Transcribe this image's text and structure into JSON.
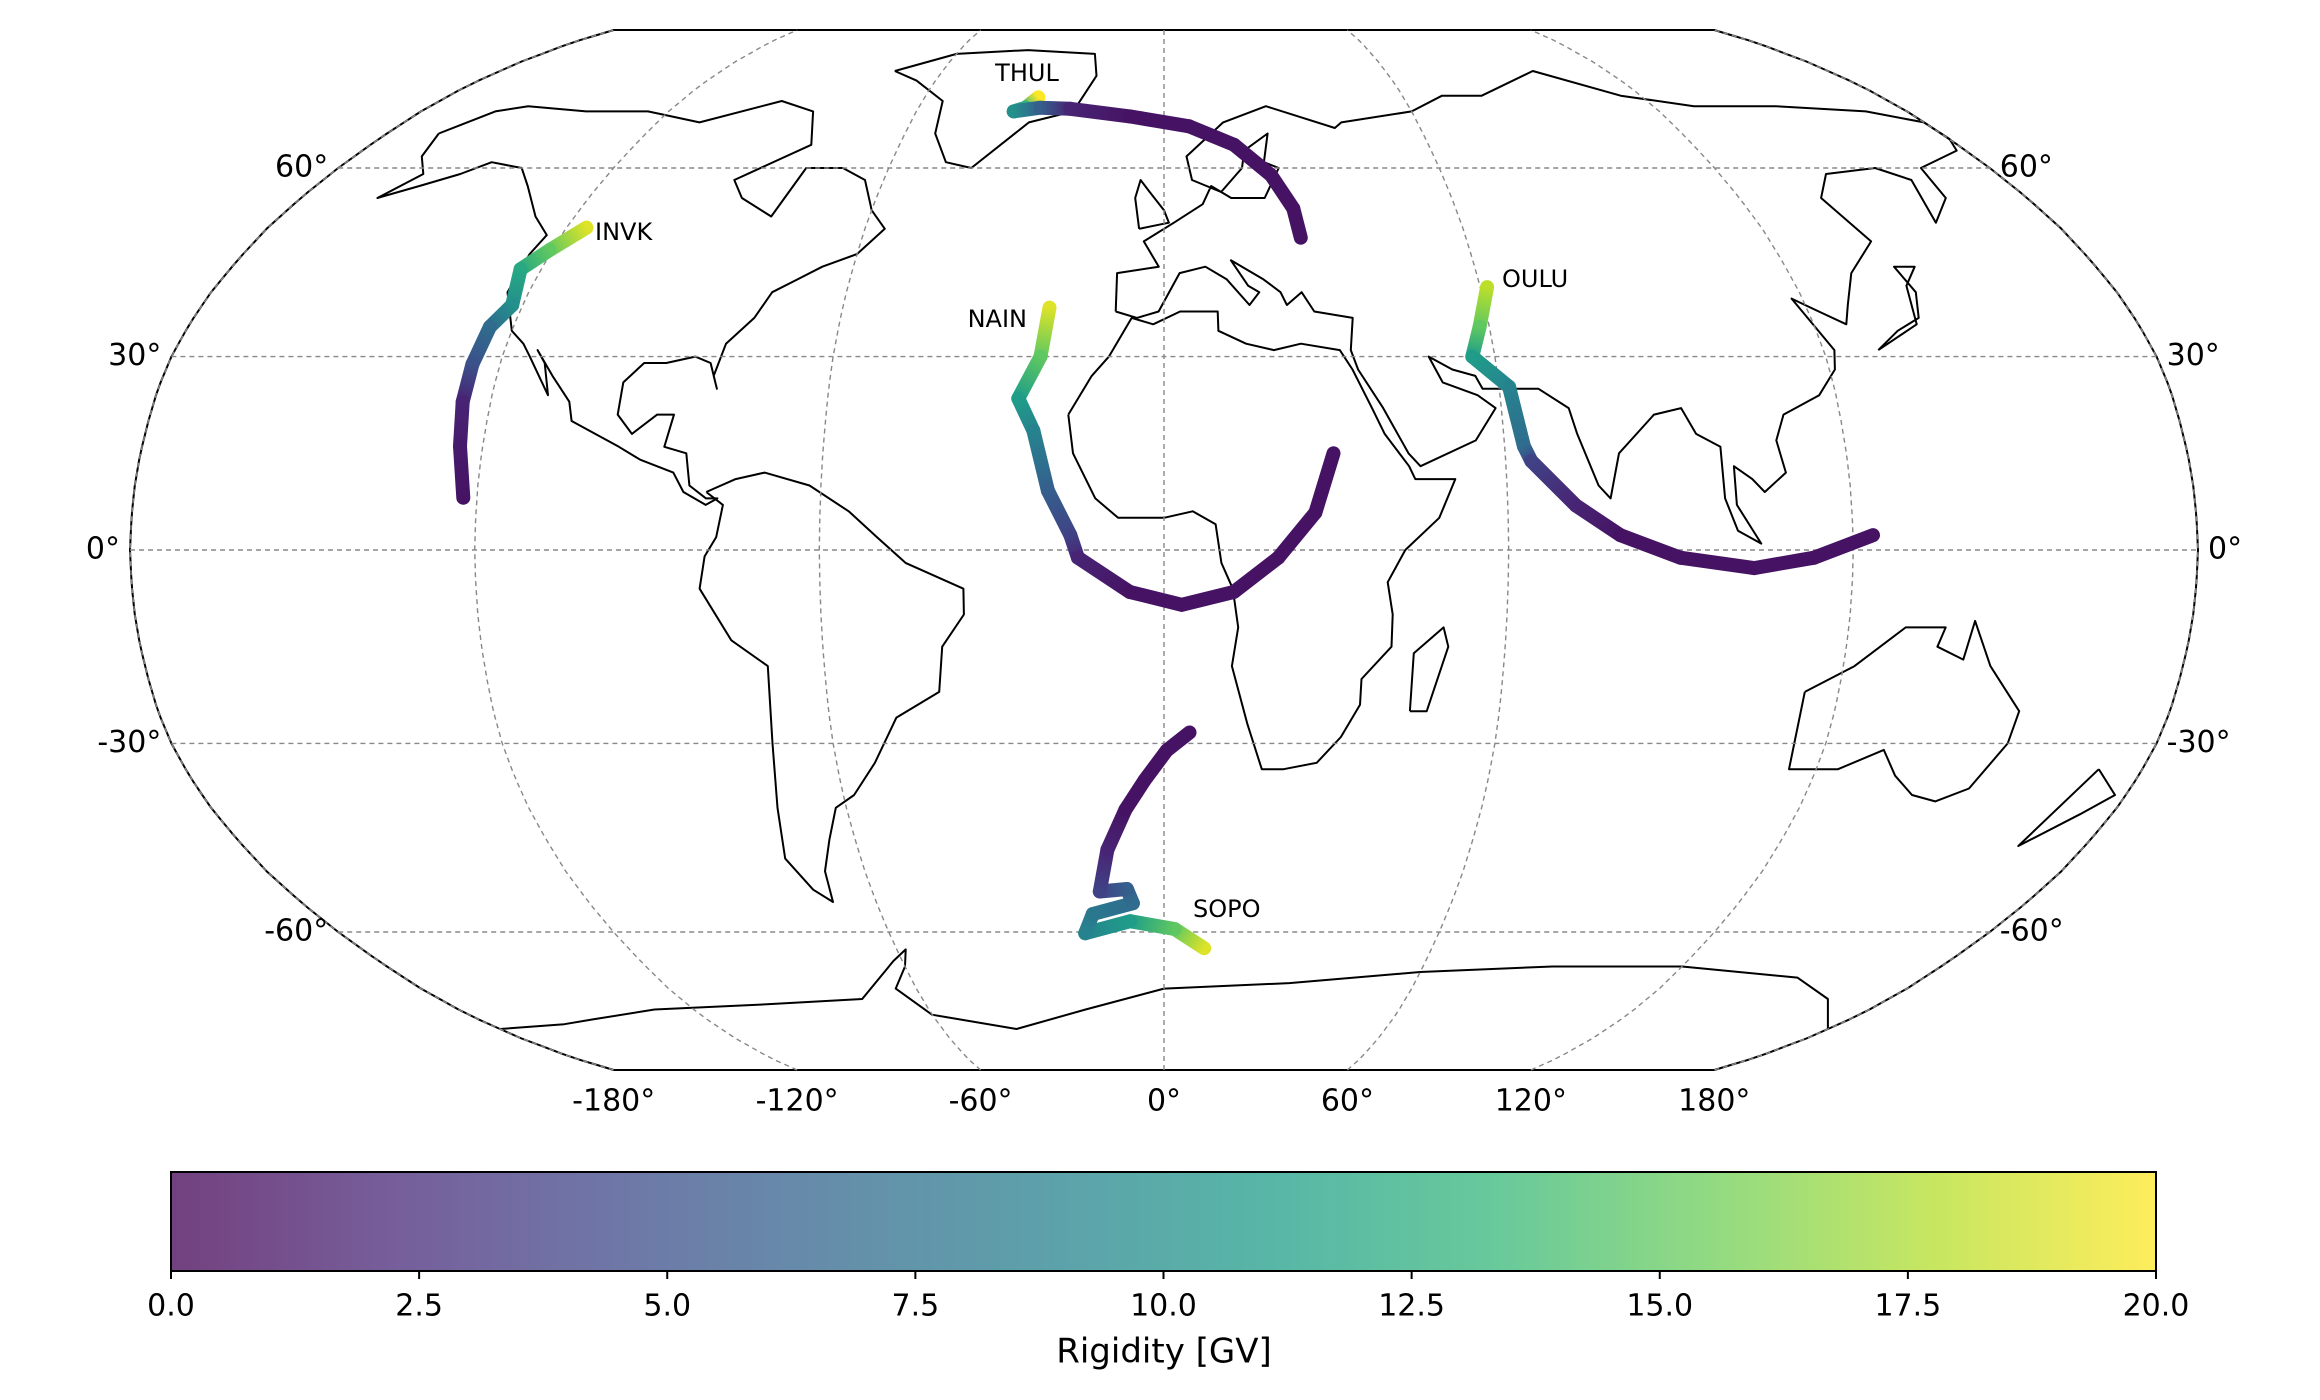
{
  "chart_data": {
    "type": "map",
    "projection": "robinson",
    "grid": true,
    "series": [
      {
        "name": "THUL",
        "lon": [
          -31.5,
          -33.8,
          -36.4,
          -30.2,
          -22.9,
          -8.2,
          5.9,
          15.9,
          23.1,
          26.6,
          27.2
        ],
        "lat": [
          72.7,
          70.7,
          70,
          70.7,
          70.5,
          69.1,
          67.3,
          64,
          58.8,
          53.3,
          48.6
        ],
        "rigidity": [
          20,
          13,
          10,
          6,
          2,
          1,
          1,
          1,
          1,
          1,
          1
        ]
      },
      {
        "name": "INVK",
        "lon": [
          -116,
          -120.6,
          -124,
          -122,
          -124.3,
          -125,
          -125,
          -124,
          -122.4
        ],
        "lat": [
          50.2,
          46.6,
          43.6,
          38,
          34.6,
          28.8,
          23,
          16.1,
          8.1
        ],
        "rigidity": [
          19,
          15,
          12,
          10,
          7,
          5,
          2,
          1.5,
          1
        ]
      },
      {
        "name": "NAIN",
        "lon": [
          -21.4,
          -22.4,
          -26,
          -23.1,
          -20.3,
          -16.3,
          -15,
          -6,
          3.1,
          12.2,
          19.9,
          26.4,
          29.8
        ],
        "lat": [
          37.6,
          30,
          23.5,
          18.5,
          9.2,
          2.3,
          -1.2,
          -6.5,
          -8.5,
          -6.5,
          -1.2,
          5.8,
          15
        ],
        "rigidity": [
          19,
          15,
          11,
          9,
          6,
          4,
          2,
          1,
          1,
          1,
          1,
          1,
          1
        ]
      },
      {
        "name": "OULU",
        "lon": [
          61.3,
          58.2,
          55.9,
          61.8,
          63.4,
          64.5,
          71.9,
          79.5,
          89.9,
          102.8,
          113.2,
          123.5
        ],
        "lat": [
          40.8,
          34.6,
          30,
          25.3,
          16.1,
          13.8,
          6.9,
          2.3,
          -1.2,
          -2.8,
          -1.2,
          2.3
        ],
        "rigidity": [
          18,
          15,
          11,
          9,
          7,
          4,
          2,
          1,
          1,
          1,
          1,
          1
        ]
      },
      {
        "name": "SOPO",
        "lon": [
          9,
          2.3,
          -7.3,
          -17.2,
          -15.1,
          -6.5,
          -7.6,
          -13.2,
          -11.1,
          -7.3,
          -3.6,
          0.5,
          4.6
        ],
        "lat": [
          -62.8,
          -59.5,
          -58.2,
          -60.2,
          -57,
          -55.2,
          -52.9,
          -53.3,
          -46.6,
          -40.3,
          -35.7,
          -31.1,
          -28.3
        ],
        "rigidity": [
          19,
          15,
          11,
          9,
          8,
          7,
          6,
          4,
          2,
          1,
          1,
          1,
          1
        ]
      }
    ],
    "lon_ticks": [
      {
        "value": -180,
        "label": "-180°"
      },
      {
        "value": -120,
        "label": "-120°"
      },
      {
        "value": -60,
        "label": "-60°"
      },
      {
        "value": 0,
        "label": "0°"
      },
      {
        "value": 60,
        "label": "60°"
      },
      {
        "value": 120,
        "label": "120°"
      },
      {
        "value": 180,
        "label": "180°"
      }
    ],
    "lat_ticks": [
      {
        "value": -60,
        "label": "-60°"
      },
      {
        "value": -30,
        "label": "-30°"
      },
      {
        "value": 0,
        "label": "0°"
      },
      {
        "value": 30,
        "label": "30°"
      },
      {
        "value": 60,
        "label": "60°"
      }
    ],
    "colorbar": {
      "label": "Rigidity [GV]",
      "lim": [
        0,
        20
      ],
      "ticks": [
        {
          "value": 0,
          "label": "0.0"
        },
        2.5,
        {
          "value": 5,
          "label": "5.0"
        },
        7.5,
        {
          "value": 10,
          "label": "10.0"
        },
        12.5,
        {
          "value": 15,
          "label": "15.0"
        },
        17.5,
        {
          "value": 20,
          "label": "20.0"
        }
      ],
      "colormap": [
        "#440154",
        "#482878",
        "#3e4989",
        "#31688e",
        "#26828e",
        "#1f9e89",
        "#35b779",
        "#6ece58",
        "#b5de2b",
        "#fde725"
      ]
    }
  }
}
